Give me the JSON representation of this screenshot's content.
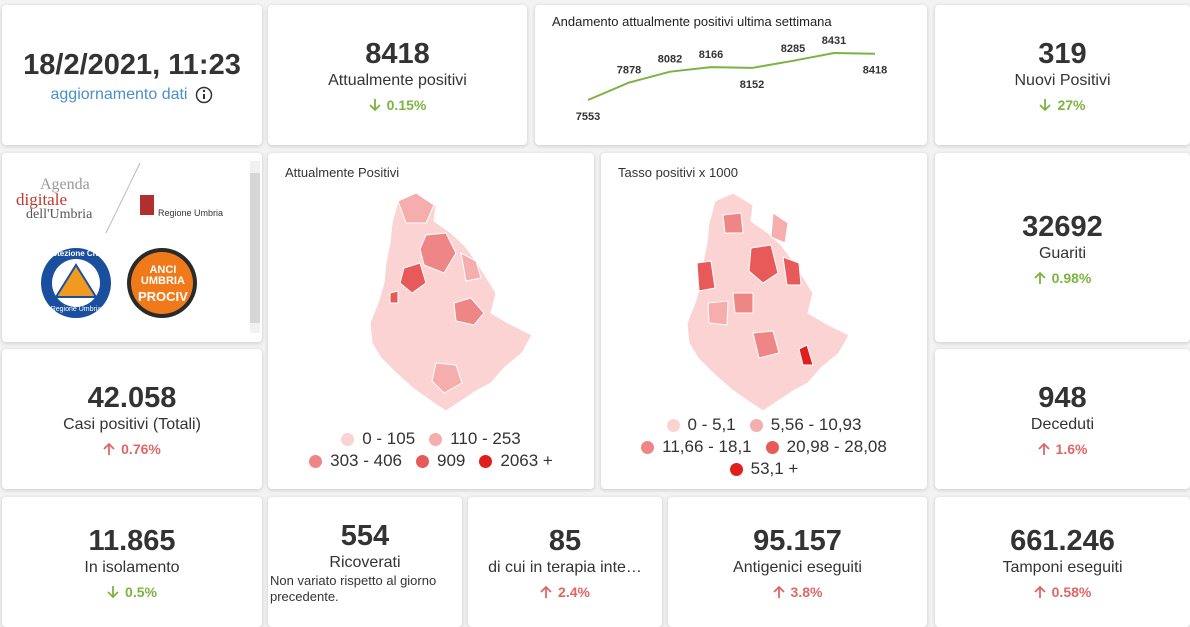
{
  "header": {
    "timestamp": "18/2/2021, 11:23",
    "subtitle": "aggiornamento dati"
  },
  "logos": {
    "agenda_1": "Agenda",
    "agenda_2": "digitale",
    "agenda_3": "dell'Umbria",
    "regione": "Regione Umbria",
    "protezione_1": "Protezione Civile",
    "protezione_2": "Regione Umbria",
    "anci_1": "ANCI",
    "anci_2": "UMBRIA",
    "anci_3": "PROCIV"
  },
  "sparkline": {
    "type": "line",
    "title": "Andamento attualmente positivi ultima settimana",
    "color": "#7cb342",
    "values": [
      7553,
      7878,
      8082,
      8166,
      8152,
      8285,
      8431,
      8418
    ]
  },
  "cards": [
    {
      "value": "8418",
      "label": "Attualmente positivi",
      "change": "0.15%",
      "direction": "down",
      "color": "#7cb342"
    },
    {
      "value": "319",
      "label": "Nuovi Positivi",
      "change": "27%",
      "direction": "down",
      "color": "#7cb342"
    },
    {
      "value": "32692",
      "label": "Guariti",
      "change": "0.98%",
      "direction": "up",
      "color": "#7cb342"
    },
    {
      "value": "42.058",
      "label": "Casi positivi (Totali)",
      "change": "0.76%",
      "direction": "up",
      "color": "#e06666"
    },
    {
      "value": "948",
      "label": "Deceduti",
      "change": "1.6%",
      "direction": "up",
      "color": "#e06666"
    },
    {
      "value": "11.865",
      "label": "In isolamento",
      "change": "0.5%",
      "direction": "down",
      "color": "#7cb342"
    },
    {
      "value": "554",
      "label": "Ricoverati",
      "note": "Non variato rispetto al giorno precedente."
    },
    {
      "value": "85",
      "label": "di cui in terapia inte…",
      "change": "2.4%",
      "direction": "up",
      "color": "#e06666"
    },
    {
      "value": "95.157",
      "label": "Antigenici eseguiti",
      "change": "3.8%",
      "direction": "up",
      "color": "#e06666"
    },
    {
      "value": "661.246",
      "label": "Tamponi eseguiti",
      "change": "0.58%",
      "direction": "up",
      "color": "#e06666"
    }
  ],
  "maps": [
    {
      "title": "Attualmente Positivi",
      "legend": [
        {
          "label": "0 - 105",
          "color": "#fbd3d3"
        },
        {
          "label": "110 - 253",
          "color": "#f5adad"
        },
        {
          "label": "303 - 406",
          "color": "#ef8686"
        },
        {
          "label": "909",
          "color": "#e85a5a"
        },
        {
          "label": "2063 +",
          "color": "#e01e1e"
        }
      ]
    },
    {
      "title": "Tasso positivi x 1000",
      "legend": [
        {
          "label": "0 - 5,1",
          "color": "#fbd3d3"
        },
        {
          "label": "5,56 - 10,93",
          "color": "#f5adad"
        },
        {
          "label": "11,66 - 18,1",
          "color": "#ef8686"
        },
        {
          "label": "20,98 - 28,08",
          "color": "#e85a5a"
        },
        {
          "label": "53,1 +",
          "color": "#e01e1e"
        }
      ]
    }
  ]
}
